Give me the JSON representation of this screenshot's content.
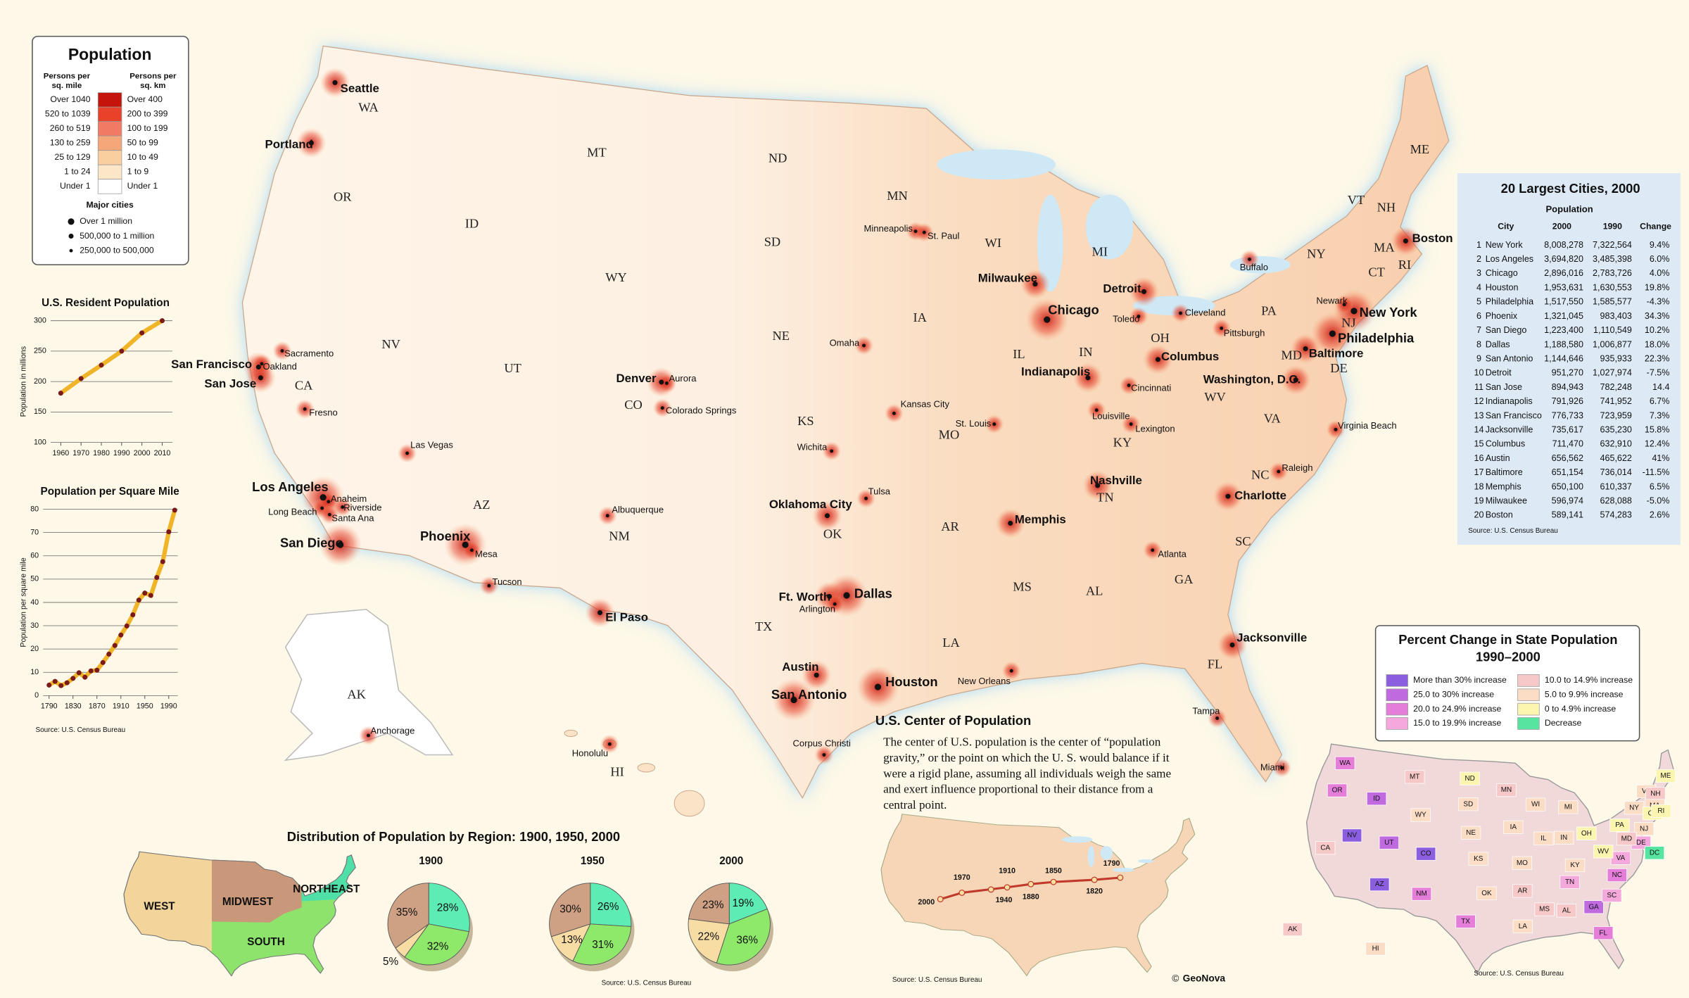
{
  "population_legend": {
    "title": "Population",
    "mile_head": [
      "Persons per",
      "sq. mile"
    ],
    "km_head": [
      "Persons per",
      "sq. km"
    ],
    "classes": [
      {
        "mile": "Over 1040",
        "km": "Over 400",
        "color": "#c4140c"
      },
      {
        "mile": "520 to 1039",
        "km": "200 to 399",
        "color": "#e8432a"
      },
      {
        "mile": "260 to 519",
        "km": "100 to 199",
        "color": "#f07a64"
      },
      {
        "mile": "130 to 259",
        "km": "50 to 99",
        "color": "#f5a77a"
      },
      {
        "mile": "25 to 129",
        "km": "10 to 49",
        "color": "#f9cfa0"
      },
      {
        "mile": "1 to 24",
        "km": "1 to 9",
        "color": "#fbe6c8"
      },
      {
        "mile": "Under 1",
        "km": "Under 1",
        "color": "#ffffff"
      }
    ],
    "cities_title": "Major cities",
    "city_classes": [
      "Over 1 million",
      "500,000 to 1 million",
      "250,000 to 500,000"
    ]
  },
  "chart_data": [
    {
      "type": "line",
      "title": "U.S. Resident Population",
      "ylabel": "Population in millions",
      "x": [
        1960,
        1970,
        1980,
        1990,
        2000,
        2010
      ],
      "values": [
        181,
        205,
        227,
        250,
        280,
        300
      ],
      "xlim": [
        1955,
        2015
      ],
      "xticks": [
        1960,
        1970,
        1980,
        1990,
        2000,
        2010
      ],
      "ylim": [
        100,
        300
      ],
      "yticks": [
        100,
        150,
        200,
        250,
        300
      ],
      "color": "#f0b429",
      "grid": true
    },
    {
      "type": "line",
      "title": "Population per Square Mile",
      "ylabel": "Population per square mile",
      "source": "Source: U.S. Census Bureau",
      "x": [
        1790,
        1800,
        1810,
        1820,
        1830,
        1840,
        1850,
        1860,
        1870,
        1880,
        1890,
        1900,
        1910,
        1920,
        1930,
        1940,
        1950,
        1960,
        1970,
        1980,
        1990,
        2000
      ],
      "values": [
        4.5,
        6.1,
        4.3,
        5.5,
        7.4,
        9.8,
        7.9,
        10.6,
        10.9,
        14.2,
        17.8,
        21.5,
        26,
        29.9,
        34.7,
        41,
        44,
        43,
        50.7,
        57.5,
        70.3,
        79.6
      ],
      "xlim": [
        1780,
        2005
      ],
      "xticks": [
        1790,
        1830,
        1870,
        1910,
        1950,
        1990
      ],
      "ylim": [
        0,
        80
      ],
      "yticks": [
        0,
        10,
        20,
        30,
        40,
        50,
        60,
        70,
        80
      ],
      "color": "#f0b429",
      "grid": true
    },
    {
      "type": "pie",
      "title": "1900",
      "values": [
        28,
        32,
        5,
        35
      ],
      "value_labels": [
        "28%",
        "32%",
        "5%",
        "35%"
      ],
      "colors": [
        "#5cecb4",
        "#8ee86a",
        "#f7dca4",
        "#cfa184"
      ]
    },
    {
      "type": "pie",
      "title": "1950",
      "values": [
        26,
        31,
        13,
        30
      ],
      "value_labels": [
        "26%",
        "31%",
        "13%",
        "30%"
      ],
      "colors": [
        "#5cecb4",
        "#8ee86a",
        "#f7dca4",
        "#cfa184"
      ]
    },
    {
      "type": "pie",
      "title": "2000",
      "values": [
        19,
        36,
        22,
        23
      ],
      "value_labels": [
        "19%",
        "36%",
        "22%",
        "23%"
      ],
      "colors": [
        "#5cecb4",
        "#8ee86a",
        "#f7dca4",
        "#cfa184"
      ]
    }
  ],
  "states": [
    "WA",
    "OR",
    "CA",
    "NV",
    "ID",
    "MT",
    "WY",
    "UT",
    "AZ",
    "NM",
    "CO",
    "ND",
    "SD",
    "NE",
    "KS",
    "OK",
    "TX",
    "MN",
    "IA",
    "MO",
    "AR",
    "LA",
    "WI",
    "IL",
    "MI",
    "IN",
    "OH",
    "KY",
    "TN",
    "MS",
    "AL",
    "GA",
    "FL",
    "SC",
    "NC",
    "VA",
    "WV",
    "PA",
    "NY",
    "ME",
    "VT",
    "NH",
    "MA",
    "CT",
    "RI",
    "NJ",
    "DE",
    "MD",
    "AK",
    "HI"
  ],
  "cities": [
    {
      "name": "Seattle",
      "class": 1
    },
    {
      "name": "Portland",
      "class": 1
    },
    {
      "name": "San Francisco",
      "class": 1
    },
    {
      "name": "Oakland",
      "class": 2
    },
    {
      "name": "Sacramento",
      "class": 2
    },
    {
      "name": "San Jose",
      "class": 1
    },
    {
      "name": "Fresno",
      "class": 2
    },
    {
      "name": "Las Vegas",
      "class": 2
    },
    {
      "name": "Los Angeles",
      "class": 0
    },
    {
      "name": "Long Beach",
      "class": 2
    },
    {
      "name": "Anaheim",
      "class": 2
    },
    {
      "name": "Riverside",
      "class": 2
    },
    {
      "name": "Santa Ana",
      "class": 2
    },
    {
      "name": "San Diego",
      "class": 0
    },
    {
      "name": "Phoenix",
      "class": 0
    },
    {
      "name": "Mesa",
      "class": 2
    },
    {
      "name": "Tucson",
      "class": 2
    },
    {
      "name": "Albuquerque",
      "class": 2
    },
    {
      "name": "El Paso",
      "class": 1
    },
    {
      "name": "Denver",
      "class": 1
    },
    {
      "name": "Aurora",
      "class": 2
    },
    {
      "name": "Colorado Springs",
      "class": 2
    },
    {
      "name": "Omaha",
      "class": 2
    },
    {
      "name": "Kansas City",
      "class": 2
    },
    {
      "name": "Wichita",
      "class": 2
    },
    {
      "name": "Tulsa",
      "class": 2
    },
    {
      "name": "Oklahoma City",
      "class": 1
    },
    {
      "name": "Ft. Worth",
      "class": 1
    },
    {
      "name": "Dallas",
      "class": 0
    },
    {
      "name": "Arlington",
      "class": 2
    },
    {
      "name": "Austin",
      "class": 1
    },
    {
      "name": "San Antonio",
      "class": 0
    },
    {
      "name": "Houston",
      "class": 0
    },
    {
      "name": "Corpus Christi",
      "class": 2
    },
    {
      "name": "Minneapolis",
      "class": 2
    },
    {
      "name": "St. Paul",
      "class": 2
    },
    {
      "name": "Milwaukee",
      "class": 1
    },
    {
      "name": "Chicago",
      "class": 0
    },
    {
      "name": "Detroit",
      "class": 1
    },
    {
      "name": "Toledo",
      "class": 2
    },
    {
      "name": "Cleveland",
      "class": 2
    },
    {
      "name": "Columbus",
      "class": 1
    },
    {
      "name": "Indianapolis",
      "class": 1
    },
    {
      "name": "Cincinnati",
      "class": 2
    },
    {
      "name": "Louisville",
      "class": 2
    },
    {
      "name": "Lexington",
      "class": 2
    },
    {
      "name": "St. Louis",
      "class": 2
    },
    {
      "name": "Memphis",
      "class": 1
    },
    {
      "name": "Nashville",
      "class": 1
    },
    {
      "name": "Atlanta",
      "class": 2
    },
    {
      "name": "New Orleans",
      "class": 2
    },
    {
      "name": "Jacksonville",
      "class": 1
    },
    {
      "name": "Tampa",
      "class": 2
    },
    {
      "name": "Miami",
      "class": 2
    },
    {
      "name": "Charlotte",
      "class": 1
    },
    {
      "name": "Raleigh",
      "class": 2
    },
    {
      "name": "Virginia Beach",
      "class": 2
    },
    {
      "name": "Washington, D.C.",
      "class": 1
    },
    {
      "name": "Baltimore",
      "class": 1
    },
    {
      "name": "Philadelphia",
      "class": 0
    },
    {
      "name": "New York",
      "class": 0
    },
    {
      "name": "Newark",
      "class": 2
    },
    {
      "name": "Pittsburgh",
      "class": 2
    },
    {
      "name": "Buffalo",
      "class": 2
    },
    {
      "name": "Boston",
      "class": 1
    },
    {
      "name": "Honolulu",
      "class": 2
    },
    {
      "name": "Anchorage",
      "class": 2
    }
  ],
  "largest_cities": {
    "title": "20 Largest Cities, 2000",
    "group_head": "Population",
    "columns": [
      "City",
      "2000",
      "1990",
      "Change"
    ],
    "rows": [
      [
        "1",
        "New York",
        "8,008,278",
        "7,322,564",
        "9.4%"
      ],
      [
        "2",
        "Los Angeles",
        "3,694,820",
        "3,485,398",
        "6.0%"
      ],
      [
        "3",
        "Chicago",
        "2,896,016",
        "2,783,726",
        "4.0%"
      ],
      [
        "4",
        "Houston",
        "1,953,631",
        "1,630,553",
        "19.8%"
      ],
      [
        "5",
        "Philadelphia",
        "1,517,550",
        "1,585,577",
        "-4.3%"
      ],
      [
        "6",
        "Phoenix",
        "1,321,045",
        "983,403",
        "34.3%"
      ],
      [
        "7",
        "San Diego",
        "1,223,400",
        "1,110,549",
        "10.2%"
      ],
      [
        "8",
        "Dallas",
        "1,188,580",
        "1,006,877",
        "18.0%"
      ],
      [
        "9",
        "San Antonio",
        "1,144,646",
        "935,933",
        "22.3%"
      ],
      [
        "10",
        "Detroit",
        "951,270",
        "1,027,974",
        "-7.5%"
      ],
      [
        "11",
        "San Jose",
        "894,943",
        "782,248",
        "14.4"
      ],
      [
        "12",
        "Indianapolis",
        "791,926",
        "741,952",
        "6.7%"
      ],
      [
        "13",
        "San Francisco",
        "776,733",
        "723,959",
        "7.3%"
      ],
      [
        "14",
        "Jacksonville",
        "735,617",
        "635,230",
        "15.8%"
      ],
      [
        "15",
        "Columbus",
        "711,470",
        "632,910",
        "12.4%"
      ],
      [
        "16",
        "Austin",
        "656,562",
        "465,622",
        "41%"
      ],
      [
        "17",
        "Baltimore",
        "651,154",
        "736,014",
        "-11.5%"
      ],
      [
        "18",
        "Memphis",
        "650,100",
        "610,337",
        "6.5%"
      ],
      [
        "19",
        "Milwaukee",
        "596,974",
        "628,088",
        "-5.0%"
      ],
      [
        "20",
        "Boston",
        "589,141",
        "574,283",
        "2.6%"
      ]
    ],
    "source": "Source: U.S. Census Bureau"
  },
  "state_change": {
    "title": [
      "Percent Change in State Population",
      "1990–2000"
    ],
    "classes": [
      {
        "label": "More than 30% increase",
        "color": "#8b5ee0"
      },
      {
        "label": "25.0 to 30% increase",
        "color": "#c06ae0"
      },
      {
        "label": "20.0 to 24.9% increase",
        "color": "#e47ed8"
      },
      {
        "label": "15.0 to 19.9% increase",
        "color": "#f5a8dc"
      },
      {
        "label": "10.0 to 14.9% increase",
        "color": "#f6c8c8"
      },
      {
        "label": "5.0 to 9.9% increase",
        "color": "#fbdcc4"
      },
      {
        "label": "0 to 4.9% increase",
        "color": "#fbf5b0"
      },
      {
        "label": "Decrease",
        "color": "#57e3a0"
      }
    ],
    "states": [
      {
        "label": "WA",
        "class": 2
      },
      {
        "label": "OR",
        "class": 2
      },
      {
        "label": "CA",
        "class": 4
      },
      {
        "label": "NV",
        "class": 0
      },
      {
        "label": "ID",
        "class": 1
      },
      {
        "label": "MT",
        "class": 4
      },
      {
        "label": "WY",
        "class": 5
      },
      {
        "label": "UT",
        "class": 1
      },
      {
        "label": "AZ",
        "class": 0
      },
      {
        "label": "NM",
        "class": 2
      },
      {
        "label": "CO",
        "class": 0
      },
      {
        "label": "ND",
        "class": 6
      },
      {
        "label": "SD",
        "class": 5
      },
      {
        "label": "NE",
        "class": 5
      },
      {
        "label": "KS",
        "class": 5
      },
      {
        "label": "OK",
        "class": 5
      },
      {
        "label": "TX",
        "class": 2
      },
      {
        "label": "MN",
        "class": 4
      },
      {
        "label": "IA",
        "class": 5
      },
      {
        "label": "MO",
        "class": 5
      },
      {
        "label": "AR",
        "class": 4
      },
      {
        "label": "LA",
        "class": 5
      },
      {
        "label": "WI",
        "class": 5
      },
      {
        "label": "IL",
        "class": 5
      },
      {
        "label": "MI",
        "class": 5
      },
      {
        "label": "IN",
        "class": 5
      },
      {
        "label": "OH",
        "class": 6
      },
      {
        "label": "KY",
        "class": 5
      },
      {
        "label": "TN",
        "class": 3
      },
      {
        "label": "MS",
        "class": 4
      },
      {
        "label": "AL",
        "class": 4
      },
      {
        "label": "GA",
        "class": 1
      },
      {
        "label": "FL",
        "class": 2
      },
      {
        "label": "SC",
        "class": 3
      },
      {
        "label": "NC",
        "class": 2
      },
      {
        "label": "VA",
        "class": 3
      },
      {
        "label": "WV",
        "class": 6
      },
      {
        "label": "PA",
        "class": 6
      },
      {
        "label": "NY",
        "class": 5
      },
      {
        "label": "ME",
        "class": 6
      },
      {
        "label": "VT",
        "class": 5
      },
      {
        "label": "NH",
        "class": 4
      },
      {
        "label": "MA",
        "class": 5
      },
      {
        "label": "CT",
        "class": 6
      },
      {
        "label": "RI",
        "class": 6
      },
      {
        "label": "NJ",
        "class": 5
      },
      {
        "label": "DE",
        "class": 3
      },
      {
        "label": "MD",
        "class": 4
      },
      {
        "label": "AK",
        "class": 4
      },
      {
        "label": "HI",
        "class": 5
      },
      {
        "label": "DC",
        "class": 7
      }
    ],
    "source": "Source: U.S. Census Bureau"
  },
  "center_of_population": {
    "title": "U.S. Center of Population",
    "text": [
      "The center of U.S. population is the center of  “population",
      "gravity,” or the point on which the U. S. would balance if it",
      "were a rigid plane, assuming all individuals weigh the same",
      "and exert influence proportional to their distance from a",
      "central point."
    ],
    "years": [
      "1790",
      "1820",
      "1850",
      "1880",
      "1910",
      "1940",
      "1970",
      "2000"
    ],
    "source": "Source: U.S. Census Bureau"
  },
  "region_distribution": {
    "title": "Distribution of Population by Region: 1900, 1950, 2000",
    "regions": [
      {
        "name": "NORTHEAST",
        "color": "#4fe0a8"
      },
      {
        "name": "SOUTH",
        "color": "#8de36b"
      },
      {
        "name": "WEST",
        "color": "#f3d49a"
      },
      {
        "name": "MIDWEST",
        "color": "#c9977a"
      }
    ],
    "source": "Source: U.S. Census Bureau"
  },
  "copyright": "©",
  "publisher": "GeoNova"
}
